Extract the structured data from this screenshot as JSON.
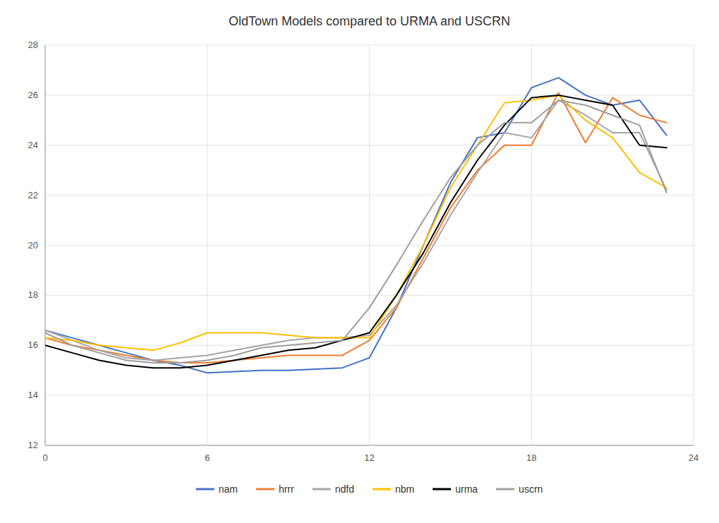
{
  "chart_data": {
    "type": "line",
    "title": "OldTown Models compared to URMA and USCRN",
    "x": [
      0,
      1,
      2,
      3,
      4,
      5,
      6,
      7,
      8,
      9,
      10,
      11,
      12,
      13,
      14,
      15,
      16,
      17,
      18,
      19,
      20,
      21,
      22,
      23
    ],
    "series": [
      {
        "name": "nam",
        "color": "#4472C4",
        "values": [
          16.6,
          16.3,
          16.0,
          15.7,
          15.4,
          15.2,
          14.9,
          14.95,
          15.0,
          15.0,
          15.05,
          15.1,
          15.5,
          17.5,
          20.0,
          22.5,
          24.3,
          24.5,
          26.3,
          26.7,
          26.0,
          25.6,
          25.8,
          24.4
        ]
      },
      {
        "name": "hrrr",
        "color": "#ED7D31",
        "values": [
          16.3,
          16.0,
          15.8,
          15.6,
          15.4,
          15.3,
          15.3,
          15.4,
          15.5,
          15.6,
          15.6,
          15.6,
          16.2,
          17.5,
          19.5,
          21.5,
          23.0,
          24.0,
          24.0,
          26.1,
          24.1,
          25.9,
          25.2,
          24.9
        ]
      },
      {
        "name": "ndfd",
        "color": "#A5A5A5",
        "values": [
          16.6,
          16.2,
          15.8,
          15.5,
          15.4,
          15.5,
          15.6,
          15.8,
          16.0,
          16.2,
          16.3,
          16.3,
          16.4,
          17.6,
          19.3,
          21.2,
          22.9,
          24.5,
          24.3,
          25.8,
          25.2,
          24.5,
          24.5,
          22.2
        ]
      },
      {
        "name": "nbm",
        "color": "#FFC000",
        "values": [
          16.3,
          16.2,
          16.0,
          15.9,
          15.8,
          16.1,
          16.5,
          16.5,
          16.5,
          16.4,
          16.3,
          16.3,
          16.3,
          18.0,
          20.0,
          22.3,
          24.0,
          25.7,
          25.8,
          26.0,
          25.0,
          24.3,
          22.9,
          22.3
        ]
      },
      {
        "name": "urma",
        "color": "#000000",
        "values": [
          16.0,
          15.7,
          15.4,
          15.2,
          15.1,
          15.1,
          15.2,
          15.4,
          15.6,
          15.8,
          15.9,
          16.2,
          16.5,
          18.0,
          19.7,
          21.7,
          23.4,
          24.8,
          25.9,
          26.0,
          25.8,
          25.6,
          24.0,
          23.9
        ]
      },
      {
        "name": "uscrn",
        "color": "#9E9E9E",
        "values": [
          16.5,
          16.0,
          15.7,
          15.4,
          15.3,
          15.3,
          15.4,
          15.6,
          15.9,
          16.0,
          16.1,
          16.2,
          17.5,
          19.2,
          21.0,
          22.7,
          24.0,
          24.9,
          24.9,
          25.8,
          25.6,
          25.2,
          24.8,
          22.1
        ]
      }
    ],
    "xlim": [
      0,
      24
    ],
    "ylim": [
      12,
      28
    ],
    "xticks": [
      0,
      6,
      12,
      18,
      24
    ],
    "yticks": [
      12,
      14,
      16,
      18,
      20,
      22,
      24,
      26,
      28
    ],
    "grid": true,
    "legend": "bottom"
  }
}
